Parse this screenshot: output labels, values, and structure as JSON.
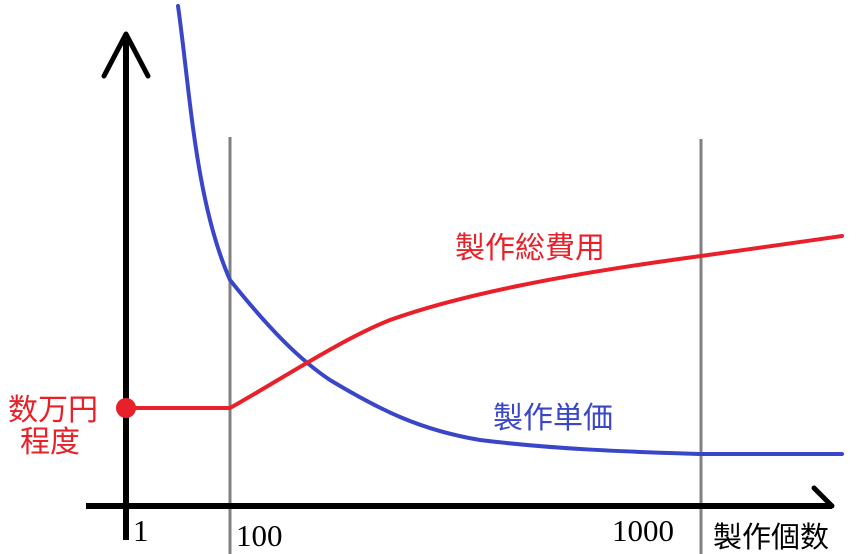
{
  "colors": {
    "axis": "#000000",
    "guide": "#808080",
    "total_cost": "#e8202a",
    "unit_price": "#3a46c8"
  },
  "x_axis": {
    "label": "製作個数",
    "ticks": [
      "1",
      "100",
      "1000"
    ]
  },
  "start_point_label": [
    "数万円",
    "程度"
  ],
  "curves": {
    "total_cost": {
      "label": "製作総費用"
    },
    "unit_price": {
      "label": "製作単価"
    }
  }
}
